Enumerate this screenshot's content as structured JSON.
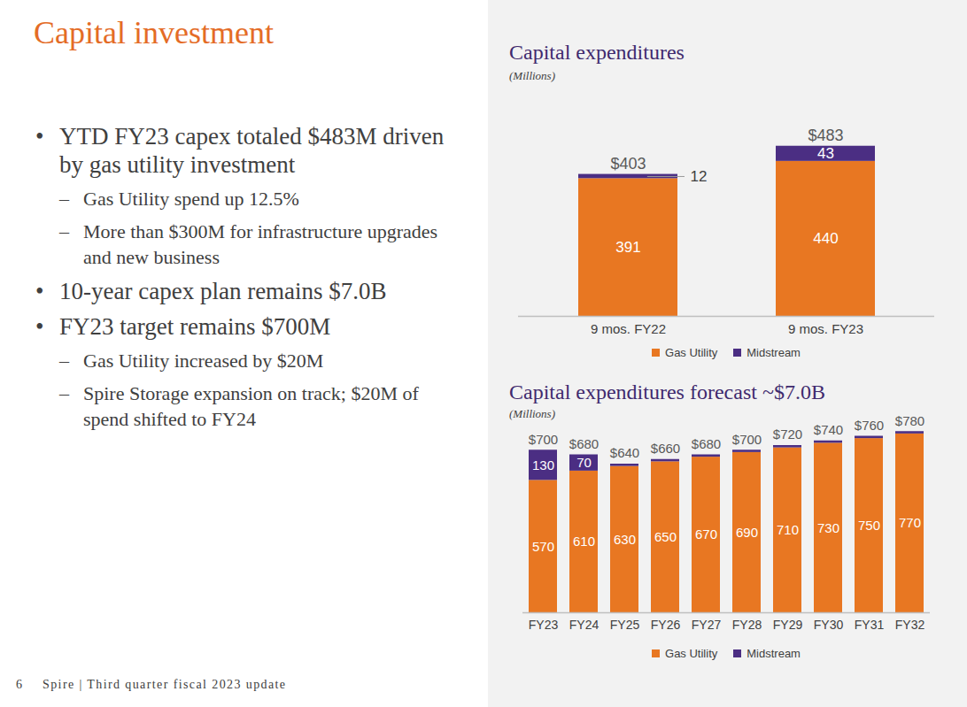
{
  "slide": {
    "title": "Capital investment",
    "bullets": [
      {
        "text": "YTD FY23 capex totaled $483M driven by gas utility investment",
        "sub": [
          "Gas Utility spend up 12.5%",
          "More than $300M for infrastructure upgrades and new business"
        ]
      },
      {
        "text": "10-year capex plan remains $7.0B",
        "sub": []
      },
      {
        "text": "FY23 target remains $700M",
        "sub": [
          "Gas Utility increased by $20M",
          "Spire Storage expansion on track; $20M of spend shifted to FY24"
        ]
      }
    ],
    "footer": {
      "page": "6",
      "text": "Spire | Third quarter fiscal 2023 update"
    }
  },
  "chart_data": [
    {
      "type": "bar",
      "title": "Capital expenditures",
      "subtitle": "(Millions)",
      "categories": [
        "9 mos. FY22",
        "9 mos. FY23"
      ],
      "series": [
        {
          "name": "Gas Utility",
          "color": "#e87722",
          "values": [
            391,
            440
          ]
        },
        {
          "name": "Midstream",
          "color": "#4b2e83",
          "values": [
            12,
            43
          ]
        }
      ],
      "totals": [
        403,
        483
      ],
      "total_labels": [
        "$403",
        "$483"
      ],
      "ylim": [
        0,
        520
      ],
      "stacked": true,
      "data_labels": true,
      "tick_labels": "x",
      "grid": false,
      "legend": "bottom"
    },
    {
      "type": "bar",
      "title": "Capital expenditures forecast ~$7.0B",
      "subtitle": "(Millions)",
      "categories": [
        "FY23",
        "FY24",
        "FY25",
        "FY26",
        "FY27",
        "FY28",
        "FY29",
        "FY30",
        "FY31",
        "FY32"
      ],
      "series": [
        {
          "name": "Gas Utility",
          "color": "#e87722",
          "values": [
            570,
            610,
            630,
            650,
            670,
            690,
            710,
            730,
            750,
            770
          ]
        },
        {
          "name": "Midstream",
          "color": "#4b2e83",
          "values": [
            130,
            70,
            10,
            10,
            10,
            10,
            10,
            10,
            10,
            10
          ],
          "value_labels": [
            "130",
            "70",
            null,
            null,
            null,
            null,
            null,
            null,
            null,
            null
          ]
        }
      ],
      "totals": [
        700,
        680,
        640,
        660,
        680,
        700,
        720,
        740,
        760,
        780
      ],
      "total_labels": [
        "$700",
        "$680",
        "$640",
        "$660",
        "$680",
        "$700",
        "$720",
        "$740",
        "$760",
        "$780"
      ],
      "ylim": [
        0,
        800
      ],
      "stacked": true,
      "data_labels": true,
      "tick_labels": "x",
      "grid": false,
      "legend": "bottom"
    }
  ]
}
